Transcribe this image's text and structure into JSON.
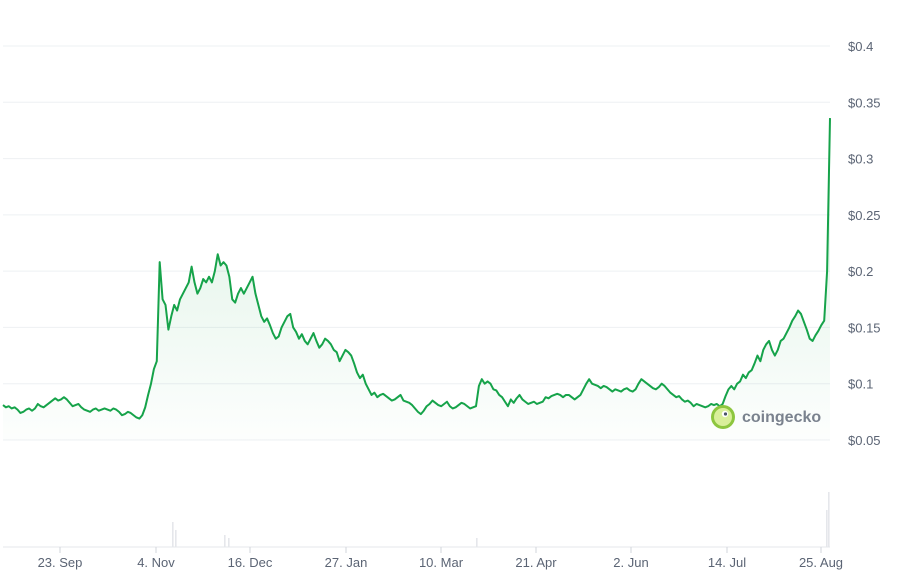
{
  "chart_data": {
    "type": "area",
    "title": "",
    "xlabel": "",
    "ylabel": "",
    "ylim": [
      0.05,
      0.4
    ],
    "y_ticks": [
      {
        "value": 0.4,
        "label": "$0.4"
      },
      {
        "value": 0.35,
        "label": "$0.35"
      },
      {
        "value": 0.3,
        "label": "$0.3"
      },
      {
        "value": 0.25,
        "label": "$0.25"
      },
      {
        "value": 0.2,
        "label": "$0.2"
      },
      {
        "value": 0.15,
        "label": "$0.15"
      },
      {
        "value": 0.1,
        "label": "$0.1"
      },
      {
        "value": 0.05,
        "label": "$0.05"
      }
    ],
    "x_ticks": [
      "23. Sep",
      "4. Nov",
      "16. Dec",
      "27. Jan",
      "10. Mar",
      "21. Apr",
      "2. Jun",
      "14. Jul",
      "25. Aug"
    ],
    "grid": true,
    "legend": "none",
    "colors": {
      "line": "#16a34a",
      "fill": "#16a34a",
      "grid": "#eef0f3",
      "volume": "#e5e7eb"
    },
    "series": [
      {
        "values": [
          0.081,
          0.079,
          0.08,
          0.078,
          0.079,
          0.077,
          0.074,
          0.075,
          0.077,
          0.078,
          0.076,
          0.078,
          0.082,
          0.08,
          0.079,
          0.081,
          0.083,
          0.085,
          0.087,
          0.085,
          0.086,
          0.088,
          0.086,
          0.083,
          0.08,
          0.081,
          0.082,
          0.079,
          0.077,
          0.076,
          0.075,
          0.077,
          0.078,
          0.076,
          0.077,
          0.078,
          0.077,
          0.076,
          0.078,
          0.077,
          0.075,
          0.072,
          0.073,
          0.075,
          0.074,
          0.072,
          0.07,
          0.069,
          0.072,
          0.079,
          0.09,
          0.1,
          0.113,
          0.12,
          0.208,
          0.175,
          0.17,
          0.148,
          0.16,
          0.17,
          0.165,
          0.175,
          0.18,
          0.185,
          0.19,
          0.204,
          0.19,
          0.18,
          0.185,
          0.193,
          0.19,
          0.195,
          0.19,
          0.2,
          0.215,
          0.205,
          0.208,
          0.205,
          0.195,
          0.175,
          0.172,
          0.18,
          0.185,
          0.18,
          0.185,
          0.19,
          0.195,
          0.18,
          0.17,
          0.16,
          0.155,
          0.158,
          0.152,
          0.145,
          0.14,
          0.142,
          0.15,
          0.155,
          0.16,
          0.162,
          0.15,
          0.146,
          0.14,
          0.144,
          0.138,
          0.135,
          0.14,
          0.145,
          0.138,
          0.132,
          0.135,
          0.14,
          0.138,
          0.135,
          0.13,
          0.128,
          0.12,
          0.125,
          0.13,
          0.128,
          0.125,
          0.118,
          0.11,
          0.105,
          0.108,
          0.1,
          0.095,
          0.09,
          0.092,
          0.088,
          0.09,
          0.091,
          0.089,
          0.087,
          0.085,
          0.086,
          0.088,
          0.09,
          0.085,
          0.084,
          0.083,
          0.081,
          0.078,
          0.075,
          0.073,
          0.076,
          0.08,
          0.082,
          0.085,
          0.083,
          0.081,
          0.08,
          0.082,
          0.084,
          0.08,
          0.078,
          0.079,
          0.081,
          0.083,
          0.082,
          0.08,
          0.078,
          0.079,
          0.08,
          0.098,
          0.104,
          0.1,
          0.102,
          0.1,
          0.095,
          0.094,
          0.09,
          0.088,
          0.084,
          0.08,
          0.086,
          0.083,
          0.087,
          0.09,
          0.086,
          0.084,
          0.082,
          0.083,
          0.084,
          0.082,
          0.083,
          0.084,
          0.088,
          0.087,
          0.089,
          0.09,
          0.091,
          0.09,
          0.088,
          0.09,
          0.09,
          0.088,
          0.086,
          0.088,
          0.09,
          0.095,
          0.1,
          0.104,
          0.1,
          0.099,
          0.098,
          0.096,
          0.098,
          0.097,
          0.095,
          0.093,
          0.095,
          0.094,
          0.093,
          0.095,
          0.096,
          0.094,
          0.093,
          0.095,
          0.1,
          0.104,
          0.102,
          0.1,
          0.098,
          0.096,
          0.095,
          0.097,
          0.1,
          0.098,
          0.095,
          0.092,
          0.09,
          0.088,
          0.089,
          0.086,
          0.084,
          0.085,
          0.083,
          0.08,
          0.082,
          0.081,
          0.08,
          0.079,
          0.08,
          0.082,
          0.081,
          0.082,
          0.08,
          0.082,
          0.089,
          0.095,
          0.098,
          0.095,
          0.1,
          0.102,
          0.108,
          0.105,
          0.11,
          0.112,
          0.118,
          0.125,
          0.12,
          0.13,
          0.135,
          0.138,
          0.13,
          0.125,
          0.13,
          0.138,
          0.14,
          0.145,
          0.15,
          0.156,
          0.16,
          0.165,
          0.162,
          0.155,
          0.148,
          0.14,
          0.138,
          0.143,
          0.147,
          0.152,
          0.156,
          0.2,
          0.336
        ]
      }
    ]
  },
  "watermark": {
    "text": "coingecko",
    "icon": "coingecko-logo-icon"
  }
}
